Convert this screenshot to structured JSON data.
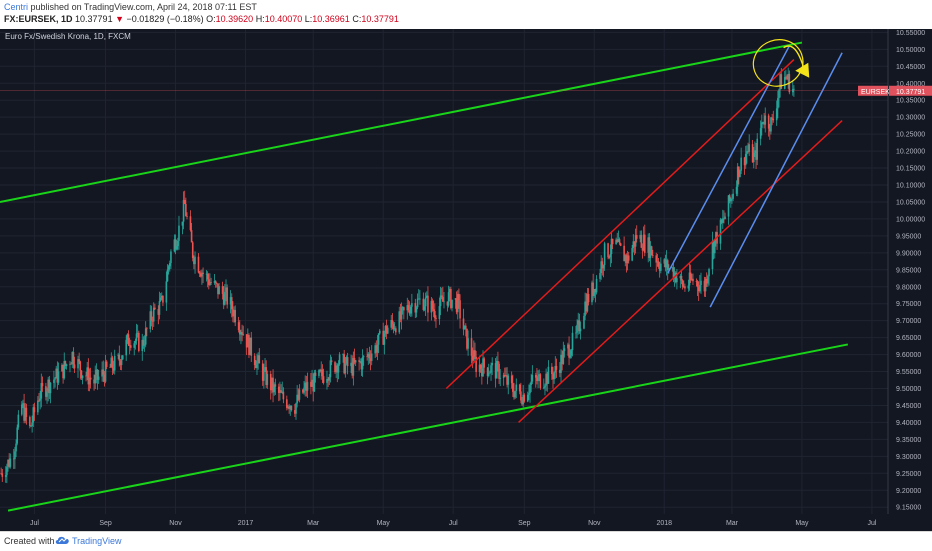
{
  "header": {
    "author": "Centri",
    "published": "published on TradingView.com, April 24, 2018 07:11 EST",
    "symbol": "FX:EURSEK, 1D",
    "last": "10.37791",
    "arrow": "▼",
    "change": "−0.01829 (−0.18%)",
    "o_label": "O:",
    "o": "10.39620",
    "h_label": "H:",
    "h": "10.40070",
    "l_label": "L:",
    "l": "10.36961",
    "c_label": "C:",
    "c": "10.37791"
  },
  "footer": {
    "created": "Created with",
    "brand": "TradingView",
    "logo_icon": "tradingview-cloud-icon"
  },
  "colors": {
    "background": "#131722",
    "grid": "#1f2431",
    "up": "#26a69a",
    "down": "#ef5350",
    "green_channel": "#19d419",
    "red_channel": "#e31b1b",
    "blue_channel": "#5b8def",
    "annotation": "#f5e31a",
    "price_tag": "#e0525d"
  },
  "chart_data": {
    "type": "candlestick",
    "title": "Euro Fx/Swedish Krona, 1D, FXCM",
    "symbol_tag": "EURSEK",
    "last_price_label": "10.37791",
    "last_price": 10.37791,
    "grid": true,
    "y_range": [
      9.13,
      10.56
    ],
    "y_ticks": [
      9.15,
      9.2,
      9.25,
      9.3,
      9.35,
      9.4,
      9.45,
      9.5,
      9.55,
      9.6,
      9.65,
      9.7,
      9.75,
      9.8,
      9.85,
      9.9,
      9.95,
      10.0,
      10.05,
      10.1,
      10.15,
      10.2,
      10.25,
      10.3,
      10.35,
      10.4,
      10.45,
      10.5,
      10.55
    ],
    "y_tick_labels": [
      "9.15000",
      "9.20000",
      "9.25000",
      "9.30000",
      "9.35000",
      "9.40000",
      "9.45000",
      "9.50000",
      "9.55000",
      "9.60000",
      "9.65000",
      "9.70000",
      "9.75000",
      "9.80000",
      "9.85000",
      "9.90000",
      "9.95000",
      "10.00000",
      "10.05000",
      "10.10000",
      "10.15000",
      "10.20000",
      "10.25000",
      "10.30000",
      "10.35000",
      "10.40000",
      "10.45000",
      "10.50000",
      "10.55000"
    ],
    "x_range": [
      "2016-06-01",
      "2018-07-15"
    ],
    "x_ticks": [
      {
        "date": "2016-07-01",
        "label": "Jul"
      },
      {
        "date": "2016-09-01",
        "label": "Sep"
      },
      {
        "date": "2016-11-01",
        "label": "Nov"
      },
      {
        "date": "2017-01-01",
        "label": "2017"
      },
      {
        "date": "2017-03-01",
        "label": "Mar"
      },
      {
        "date": "2017-05-01",
        "label": "May"
      },
      {
        "date": "2017-07-01",
        "label": "Jul"
      },
      {
        "date": "2017-09-01",
        "label": "Sep"
      },
      {
        "date": "2017-11-01",
        "label": "Nov"
      },
      {
        "date": "2018-01-01",
        "label": "2018"
      },
      {
        "date": "2018-03-01",
        "label": "Mar"
      },
      {
        "date": "2018-05-01",
        "label": "May"
      },
      {
        "date": "2018-07-01",
        "label": "Jul"
      }
    ],
    "price_path": [
      [
        "2016-06-02",
        9.25
      ],
      [
        "2016-06-12",
        9.3
      ],
      [
        "2016-06-20",
        9.45
      ],
      [
        "2016-06-27",
        9.38
      ],
      [
        "2016-07-05",
        9.48
      ],
      [
        "2016-07-15",
        9.52
      ],
      [
        "2016-07-25",
        9.55
      ],
      [
        "2016-08-03",
        9.6
      ],
      [
        "2016-08-12",
        9.55
      ],
      [
        "2016-08-22",
        9.52
      ],
      [
        "2016-09-01",
        9.55
      ],
      [
        "2016-09-12",
        9.58
      ],
      [
        "2016-09-22",
        9.65
      ],
      [
        "2016-10-03",
        9.63
      ],
      [
        "2016-10-12",
        9.72
      ],
      [
        "2016-10-20",
        9.75
      ],
      [
        "2016-10-28",
        9.9
      ],
      [
        "2016-11-04",
        9.97
      ],
      [
        "2016-11-09",
        10.04
      ],
      [
        "2016-11-16",
        9.9
      ],
      [
        "2016-11-25",
        9.84
      ],
      [
        "2016-12-05",
        9.8
      ],
      [
        "2016-12-15",
        9.77
      ],
      [
        "2016-12-23",
        9.72
      ],
      [
        "2017-01-05",
        9.62
      ],
      [
        "2017-01-15",
        9.55
      ],
      [
        "2017-01-25",
        9.5
      ],
      [
        "2017-02-03",
        9.47
      ],
      [
        "2017-02-13",
        9.45
      ],
      [
        "2017-02-22",
        9.5
      ],
      [
        "2017-03-03",
        9.52
      ],
      [
        "2017-03-13",
        9.55
      ],
      [
        "2017-03-23",
        9.58
      ],
      [
        "2017-04-03",
        9.56
      ],
      [
        "2017-04-13",
        9.58
      ],
      [
        "2017-04-24",
        9.62
      ],
      [
        "2017-05-05",
        9.68
      ],
      [
        "2017-05-15",
        9.7
      ],
      [
        "2017-05-25",
        9.75
      ],
      [
        "2017-06-05",
        9.76
      ],
      [
        "2017-06-15",
        9.73
      ],
      [
        "2017-06-26",
        9.77
      ],
      [
        "2017-07-05",
        9.75
      ],
      [
        "2017-07-12",
        9.65
      ],
      [
        "2017-07-21",
        9.57
      ],
      [
        "2017-08-01",
        9.56
      ],
      [
        "2017-08-10",
        9.55
      ],
      [
        "2017-08-21",
        9.5
      ],
      [
        "2017-08-31",
        9.48
      ],
      [
        "2017-09-08",
        9.52
      ],
      [
        "2017-09-18",
        9.53
      ],
      [
        "2017-09-28",
        9.55
      ],
      [
        "2017-10-06",
        9.6
      ],
      [
        "2017-10-16",
        9.65
      ],
      [
        "2017-10-24",
        9.75
      ],
      [
        "2017-11-01",
        9.8
      ],
      [
        "2017-11-10",
        9.9
      ],
      [
        "2017-11-20",
        9.92
      ],
      [
        "2017-11-30",
        9.88
      ],
      [
        "2017-12-08",
        9.95
      ],
      [
        "2017-12-18",
        9.92
      ],
      [
        "2017-12-28",
        9.87
      ],
      [
        "2018-01-08",
        9.85
      ],
      [
        "2018-01-18",
        9.8
      ],
      [
        "2018-01-26",
        9.82
      ],
      [
        "2018-02-05",
        9.8
      ],
      [
        "2018-02-12",
        9.92
      ],
      [
        "2018-02-20",
        9.98
      ],
      [
        "2018-02-28",
        10.06
      ],
      [
        "2018-03-07",
        10.15
      ],
      [
        "2018-03-14",
        10.2
      ],
      [
        "2018-03-21",
        10.18
      ],
      [
        "2018-03-28",
        10.3
      ],
      [
        "2018-04-05",
        10.28
      ],
      [
        "2018-04-12",
        10.4
      ],
      [
        "2018-04-17",
        10.42
      ],
      [
        "2018-04-24",
        10.378
      ]
    ],
    "trendlines": [
      {
        "color": "green",
        "from": [
          "2016-06-01",
          10.05
        ],
        "to": [
          "2018-05-01",
          10.52
        ]
      },
      {
        "color": "green",
        "from": [
          "2016-06-08",
          9.14
        ],
        "to": [
          "2018-06-10",
          9.63
        ]
      },
      {
        "color": "red",
        "from": [
          "2017-06-25",
          9.5
        ],
        "to": [
          "2018-04-24",
          10.47
        ]
      },
      {
        "color": "red",
        "from": [
          "2017-08-27",
          9.4
        ],
        "to": [
          "2018-06-05",
          10.29
        ]
      },
      {
        "color": "blue",
        "from": [
          "2018-01-04",
          9.84
        ],
        "to": [
          "2018-04-20",
          10.51
        ]
      },
      {
        "color": "blue",
        "from": [
          "2018-02-10",
          9.74
        ],
        "to": [
          "2018-06-05",
          10.49
        ]
      }
    ]
  }
}
